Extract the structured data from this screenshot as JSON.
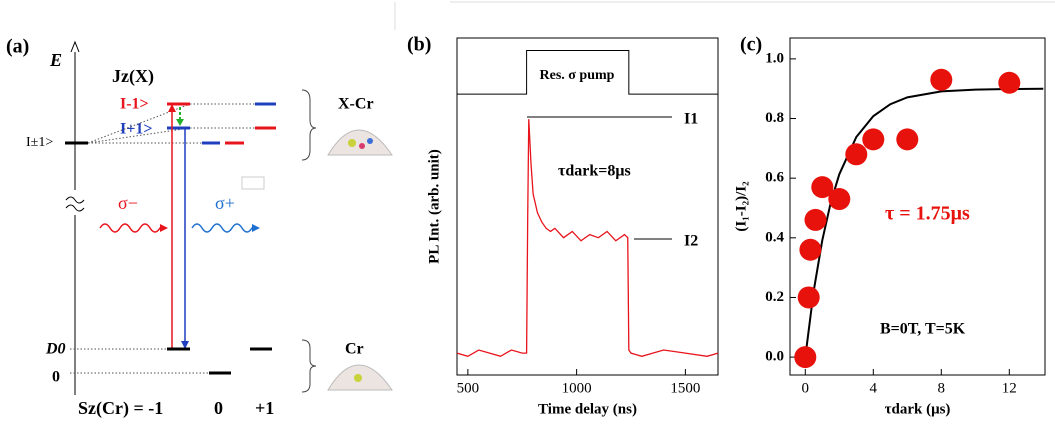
{
  "diagram": {
    "panel_label": "(a)",
    "energy_axis": "E",
    "jz_label": "Jz(X)",
    "state_minus": "I-1>",
    "state_plus": "I+1>",
    "state_pm": "I±1>",
    "xcr_label": "X-Cr",
    "sigma_minus": "σ−",
    "sigma_plus": "σ+",
    "d0_label": "D0",
    "zero_level": "0",
    "cr_label": "Cr",
    "sz_label": "Sz(Cr) = -1",
    "sz_0": "0",
    "sz_plus1": "+1"
  },
  "chart_data": [
    {
      "type": "line",
      "panel_label": "(b)",
      "ylabel": "PL Int. (arb. unit)",
      "xlabel": "Time delay (ns)",
      "annotations": {
        "pump": "Res. σ pump",
        "i1": "I1",
        "i2": "I2",
        "tau": "τdark=8μs"
      },
      "xlim": [
        450,
        1650
      ],
      "xticks": [
        500,
        1000,
        1500
      ],
      "ylim": [
        0,
        1.08
      ],
      "series": [
        {
          "color": "#e8141c",
          "x": [
            450,
            500,
            550,
            600,
            650,
            700,
            750,
            770,
            775,
            780,
            790,
            800,
            820,
            840,
            860,
            880,
            900,
            940,
            980,
            1020,
            1060,
            1100,
            1140,
            1180,
            1220,
            1235,
            1240,
            1250,
            1300,
            1400,
            1500,
            1600,
            1650
          ],
          "values": [
            0.07,
            0.06,
            0.08,
            0.07,
            0.06,
            0.08,
            0.07,
            0.07,
            0.5,
            0.82,
            0.68,
            0.58,
            0.52,
            0.49,
            0.47,
            0.46,
            0.47,
            0.44,
            0.46,
            0.43,
            0.45,
            0.44,
            0.46,
            0.43,
            0.45,
            0.44,
            0.08,
            0.07,
            0.06,
            0.08,
            0.07,
            0.06,
            0.07
          ]
        },
        {
          "color": "#000000",
          "x": [
            450,
            770,
            770,
            1240,
            1240,
            1650
          ],
          "values": [
            0.9,
            0.9,
            1.04,
            1.04,
            0.9,
            0.9
          ]
        }
      ]
    },
    {
      "type": "scatter",
      "panel_label": "(c)",
      "ylabel": "(I₁-I₂)/I₂",
      "xlabel": "τdark (μs)",
      "annotations": {
        "tau": "τ = 1.75μs",
        "conditions": "B=0T, T=5K"
      },
      "xlim": [
        -0.9,
        14.1
      ],
      "xticks": [
        0,
        4,
        8,
        12
      ],
      "ylim": [
        -0.06,
        1.07
      ],
      "yticks": [
        {
          "value": 0,
          "label": "0.0"
        },
        0.2,
        0.4,
        0.6,
        0.8,
        {
          "value": 1,
          "label": "1.0"
        }
      ],
      "series": [
        {
          "color": "#e8120c",
          "x": [
            0,
            0.2,
            0.3,
            0.6,
            1,
            2,
            3,
            4,
            6,
            8,
            12
          ],
          "values": [
            0,
            0.2,
            0.36,
            0.46,
            0.57,
            0.53,
            0.68,
            0.73,
            0.73,
            0.93,
            0.92
          ]
        },
        {
          "color": "#000000",
          "x": [
            0,
            0.5,
            1,
            1.5,
            2,
            3,
            4,
            5,
            6,
            8,
            10,
            12,
            14
          ],
          "values": [
            0,
            0.224,
            0.392,
            0.519,
            0.613,
            0.738,
            0.808,
            0.848,
            0.871,
            0.891,
            0.897,
            0.899,
            0.9
          ]
        }
      ]
    }
  ]
}
